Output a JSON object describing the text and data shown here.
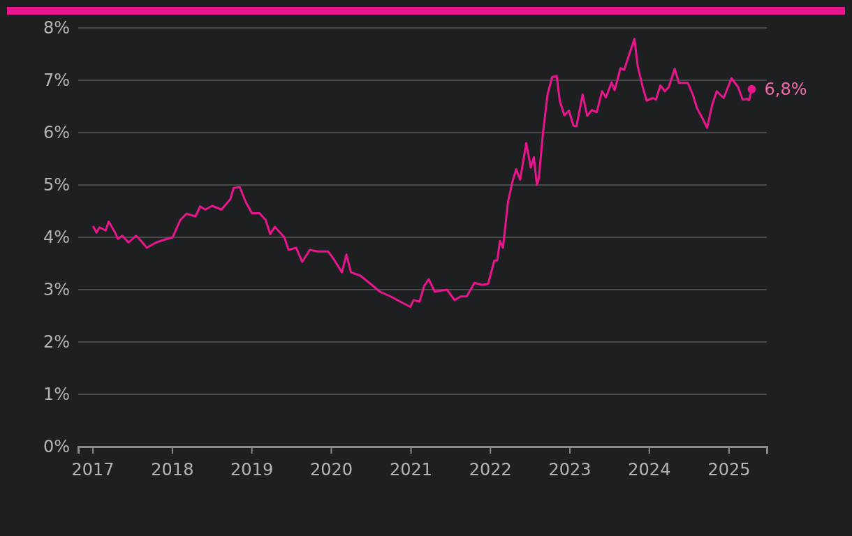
{
  "chart_data": {
    "type": "line",
    "x": [
      "2017-01-05",
      "2017-01-19",
      "2017-02-02",
      "2017-03-02",
      "2017-03-16",
      "2017-04-13",
      "2017-04-27",
      "2017-05-18",
      "2017-06-15",
      "2017-07-20",
      "2017-08-10",
      "2017-09-07",
      "2017-10-19",
      "2017-12-01",
      "2018-01-04",
      "2018-02-08",
      "2018-03-08",
      "2018-04-19",
      "2018-05-10",
      "2018-06-02",
      "2018-07-05",
      "2018-08-16",
      "2018-09-26",
      "2018-10-11",
      "2018-11-08",
      "2018-12-06",
      "2019-01-03",
      "2019-02-07",
      "2019-03-07",
      "2019-03-28",
      "2019-04-18",
      "2019-06-01",
      "2019-06-20",
      "2019-07-25",
      "2019-08-22",
      "2019-09-26",
      "2019-10-31",
      "2019-12-19",
      "2020-01-16",
      "2020-02-20",
      "2020-03-12",
      "2020-04-02",
      "2020-05-14",
      "2020-06-25",
      "2020-08-13",
      "2020-10-01",
      "2020-11-19",
      "2020-12-31",
      "2021-01-14",
      "2021-02-11",
      "2021-03-04",
      "2021-03-25",
      "2021-04-22",
      "2021-06-17",
      "2021-07-22",
      "2021-08-19",
      "2021-09-16",
      "2021-10-21",
      "2021-11-25",
      "2021-12-23",
      "2022-01-20",
      "2022-02-03",
      "2022-02-15",
      "2022-03-01",
      "2022-03-24",
      "2022-04-14",
      "2022-05-01",
      "2022-05-19",
      "2022-06-16",
      "2022-07-07",
      "2022-07-21",
      "2022-08-04",
      "2022-08-13",
      "2022-09-01",
      "2022-09-22",
      "2022-10-13",
      "2022-11-03",
      "2022-11-17",
      "2022-12-08",
      "2022-12-29",
      "2023-01-19",
      "2023-02-02",
      "2023-03-02",
      "2023-03-23",
      "2023-04-13",
      "2023-05-06",
      "2023-05-30",
      "2023-06-17",
      "2023-07-13",
      "2023-07-27",
      "2023-08-23",
      "2023-09-09",
      "2023-10-05",
      "2023-10-26",
      "2023-11-10",
      "2023-12-03",
      "2023-12-21",
      "2024-01-18",
      "2024-02-02",
      "2024-02-22",
      "2024-03-14",
      "2024-04-01",
      "2024-04-28",
      "2024-05-17",
      "2024-06-27",
      "2024-07-20",
      "2024-08-08",
      "2024-09-03",
      "2024-09-24",
      "2024-10-17",
      "2024-11-07",
      "2024-12-09",
      "2025-01-14",
      "2025-02-13",
      "2025-03-06",
      "2025-03-28",
      "2025-04-05",
      "2025-04-17"
    ],
    "values": [
      4.2,
      4.09,
      4.19,
      4.13,
      4.3,
      4.1,
      3.97,
      4.03,
      3.9,
      4.03,
      3.94,
      3.8,
      3.9,
      3.96,
      4.0,
      4.33,
      4.45,
      4.4,
      4.59,
      4.53,
      4.6,
      4.53,
      4.73,
      4.94,
      4.96,
      4.67,
      4.46,
      4.46,
      4.33,
      4.06,
      4.2,
      4.0,
      3.76,
      3.8,
      3.53,
      3.76,
      3.73,
      3.73,
      3.57,
      3.33,
      3.67,
      3.33,
      3.27,
      3.13,
      2.96,
      2.87,
      2.76,
      2.67,
      2.8,
      2.77,
      3.07,
      3.2,
      2.96,
      3.0,
      2.8,
      2.87,
      2.87,
      3.13,
      3.09,
      3.11,
      3.55,
      3.56,
      3.93,
      3.8,
      4.67,
      5.07,
      5.3,
      5.1,
      5.8,
      5.33,
      5.53,
      5.0,
      5.13,
      6.0,
      6.73,
      7.06,
      7.08,
      6.61,
      6.33,
      6.42,
      6.13,
      6.12,
      6.73,
      6.32,
      6.43,
      6.39,
      6.79,
      6.67,
      6.96,
      6.81,
      7.23,
      7.2,
      7.53,
      7.79,
      7.27,
      6.87,
      6.61,
      6.66,
      6.63,
      6.9,
      6.79,
      6.87,
      7.22,
      6.95,
      6.95,
      6.73,
      6.47,
      6.27,
      6.09,
      6.53,
      6.79,
      6.66,
      7.04,
      6.87,
      6.63,
      6.64,
      6.62,
      6.83
    ],
    "color": "#e8168c",
    "xlim": [
      "2016-10-27",
      "2025-06-25"
    ],
    "xticks": [
      {
        "value": "2017-01-01",
        "label": "2017"
      },
      {
        "value": "2018-01-01",
        "label": "2018"
      },
      {
        "value": "2019-01-01",
        "label": "2019"
      },
      {
        "value": "2020-01-01",
        "label": "2020"
      },
      {
        "value": "2021-01-01",
        "label": "2021"
      },
      {
        "value": "2022-01-01",
        "label": "2022"
      },
      {
        "value": "2023-01-01",
        "label": "2023"
      },
      {
        "value": "2024-01-01",
        "label": "2024"
      },
      {
        "value": "2025-01-01",
        "label": "2025"
      }
    ],
    "ylim": [
      0,
      8
    ],
    "yticks": [
      {
        "value": 0,
        "label": "0%"
      },
      {
        "value": 1,
        "label": "1%"
      },
      {
        "value": 2,
        "label": "2%"
      },
      {
        "value": 3,
        "label": "3%"
      },
      {
        "value": 4,
        "label": "4%"
      },
      {
        "value": 5,
        "label": "5%"
      },
      {
        "value": 6,
        "label": "6%"
      },
      {
        "value": 7,
        "label": "7%"
      },
      {
        "value": 8,
        "label": "8%"
      }
    ],
    "grid": "y",
    "line_style": "solid",
    "annotations": [
      {
        "text": "6,8%",
        "x": "2025-04-17",
        "y": 6.83
      }
    ]
  }
}
